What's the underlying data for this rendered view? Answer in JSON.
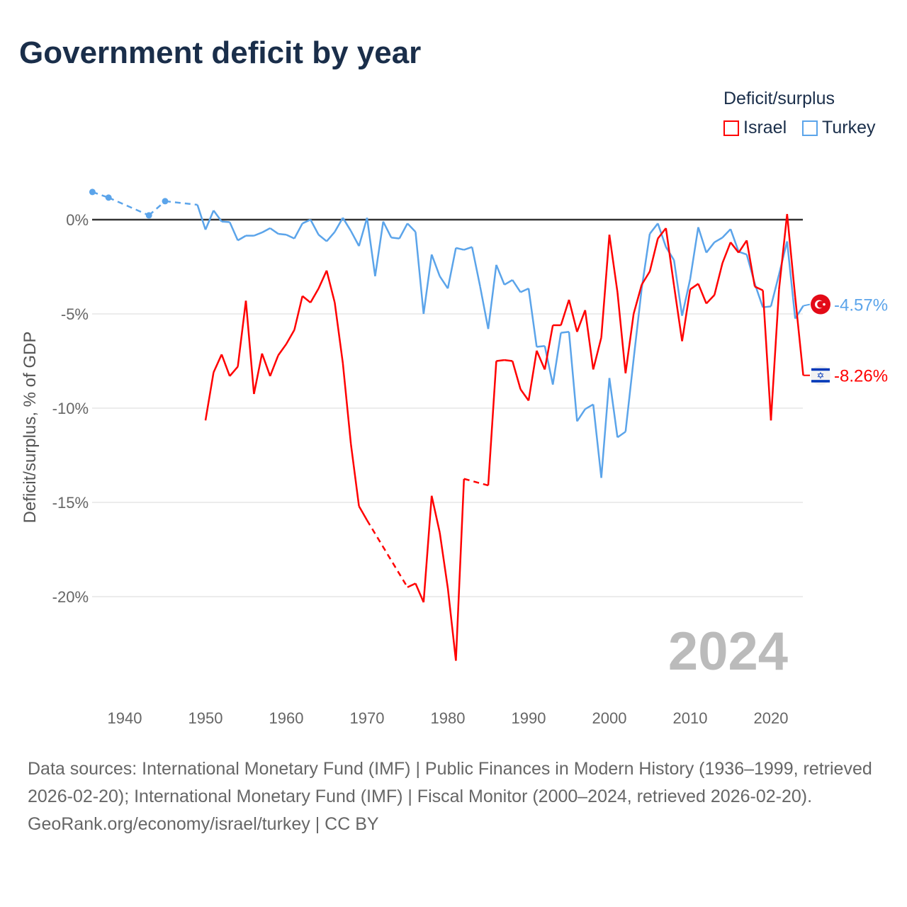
{
  "title": "Government deficit by year",
  "legend": {
    "title": "Deficit/surplus",
    "items": [
      {
        "name": "Israel",
        "color": "#ff0000"
      },
      {
        "name": "Turkey",
        "color": "#5ba4ea"
      }
    ]
  },
  "year_label": "2024",
  "footer": {
    "sources": "Data sources: International Monetary Fund (IMF) | Public Finances in Modern History (1936–1999, retrieved 2026-02-20); International Monetary Fund (IMF) | Fiscal Monitor (2000–2024, retrieved 2026-02-20).",
    "credit": "GeoRank.org/economy/israel/turkey | CC BY"
  },
  "chart_data": {
    "type": "line",
    "title": "Government deficit by year",
    "xlabel": "",
    "ylabel": "Deficit/surplus, % of GDP",
    "xlim": [
      1936,
      2024
    ],
    "ylim": [
      -24,
      2
    ],
    "x_ticks": [
      1940,
      1950,
      1960,
      1970,
      1980,
      1990,
      2000,
      2010,
      2020
    ],
    "y_ticks": [
      {
        "v": 0,
        "label": "0%"
      },
      {
        "v": -5,
        "label": "-5%"
      },
      {
        "v": -10,
        "label": "-10%"
      },
      {
        "v": -15,
        "label": "-15%"
      },
      {
        "v": -20,
        "label": "-20%"
      }
    ],
    "grid": true,
    "legend_position": "top-right",
    "series": [
      {
        "name": "Turkey",
        "color": "#5ba4ea",
        "end_label": "-4.57%",
        "flag": "turkey",
        "points": [
          [
            1936,
            1.47
          ],
          [
            1938,
            1.17
          ],
          [
            1943,
            0.23
          ],
          [
            1945,
            0.98
          ],
          [
            1949,
            0.79
          ],
          [
            1950,
            -0.53
          ],
          [
            1951,
            0.49
          ],
          [
            1952,
            -0.1
          ],
          [
            1953,
            -0.13
          ],
          [
            1954,
            -1.1
          ],
          [
            1955,
            -0.85
          ],
          [
            1956,
            -0.85
          ],
          [
            1957,
            -0.68
          ],
          [
            1958,
            -0.45
          ],
          [
            1959,
            -0.75
          ],
          [
            1960,
            -0.8
          ],
          [
            1961,
            -1.0
          ],
          [
            1962,
            -0.2
          ],
          [
            1963,
            0
          ],
          [
            1964,
            -0.8
          ],
          [
            1965,
            -1.15
          ],
          [
            1966,
            -0.65
          ],
          [
            1967,
            0.1
          ],
          [
            1968,
            -0.6
          ],
          [
            1969,
            -1.4
          ],
          [
            1970,
            0.1
          ],
          [
            1971,
            -3.0
          ],
          [
            1972,
            -0.1
          ],
          [
            1973,
            -0.95
          ],
          [
            1974,
            -1.0
          ],
          [
            1975,
            -0.2
          ],
          [
            1976,
            -0.65
          ],
          [
            1977,
            -5.0
          ],
          [
            1978,
            -1.85
          ],
          [
            1979,
            -3.0
          ],
          [
            1980,
            -3.65
          ],
          [
            1981,
            -1.5
          ],
          [
            1982,
            -1.6
          ],
          [
            1983,
            -1.45
          ],
          [
            1984,
            -3.55
          ],
          [
            1985,
            -5.8
          ],
          [
            1986,
            -2.4
          ],
          [
            1987,
            -3.45
          ],
          [
            1988,
            -3.2
          ],
          [
            1989,
            -3.85
          ],
          [
            1990,
            -3.65
          ],
          [
            1991,
            -6.75
          ],
          [
            1992,
            -6.7
          ],
          [
            1993,
            -8.75
          ],
          [
            1994,
            -6.0
          ],
          [
            1995,
            -5.95
          ],
          [
            1996,
            -10.7
          ],
          [
            1997,
            -10.05
          ],
          [
            1998,
            -9.8
          ],
          [
            1999,
            -13.7
          ],
          [
            2000,
            -8.4
          ],
          [
            2001,
            -11.55
          ],
          [
            2002,
            -11.25
          ],
          [
            2003,
            -7.4
          ],
          [
            2004,
            -3.65
          ],
          [
            2005,
            -0.75
          ],
          [
            2006,
            -0.2
          ],
          [
            2007,
            -1.45
          ],
          [
            2008,
            -2.15
          ],
          [
            2009,
            -5.1
          ],
          [
            2010,
            -3.15
          ],
          [
            2011,
            -0.4
          ],
          [
            2012,
            -1.75
          ],
          [
            2013,
            -1.2
          ],
          [
            2014,
            -0.95
          ],
          [
            2015,
            -0.5
          ],
          [
            2016,
            -1.7
          ],
          [
            2017,
            -1.85
          ],
          [
            2018,
            -3.4
          ],
          [
            2019,
            -4.65
          ],
          [
            2020,
            -4.6
          ],
          [
            2021,
            -2.9
          ],
          [
            2022,
            -1.15
          ],
          [
            2023,
            -5.25
          ],
          [
            2024,
            -4.57
          ]
        ]
      },
      {
        "name": "Israel",
        "color": "#ff0000",
        "end_label": "-8.26%",
        "flag": "israel",
        "points": [
          [
            1950,
            -10.65
          ],
          [
            1951,
            -8.1
          ],
          [
            1952,
            -7.15
          ],
          [
            1953,
            -8.3
          ],
          [
            1954,
            -7.8
          ],
          [
            1955,
            -4.3
          ],
          [
            1956,
            -9.25
          ],
          [
            1957,
            -7.1
          ],
          [
            1958,
            -8.3
          ],
          [
            1959,
            -7.2
          ],
          [
            1960,
            -6.6
          ],
          [
            1961,
            -5.85
          ],
          [
            1962,
            -4.05
          ],
          [
            1963,
            -4.4
          ],
          [
            1964,
            -3.65
          ],
          [
            1965,
            -2.7
          ],
          [
            1966,
            -4.4
          ],
          [
            1967,
            -7.6
          ],
          [
            1968,
            -11.9
          ],
          [
            1969,
            -15.2
          ],
          [
            1970,
            -15.95
          ],
          [
            1975,
            -19.5
          ],
          [
            1976,
            -19.3
          ],
          [
            1977,
            -20.3
          ],
          [
            1978,
            -14.65
          ],
          [
            1979,
            -16.6
          ],
          [
            1980,
            -19.55
          ],
          [
            1981,
            -23.4
          ],
          [
            1982,
            -13.75
          ],
          [
            1985,
            -14.1
          ],
          [
            1986,
            -7.5
          ],
          [
            1987,
            -7.45
          ],
          [
            1988,
            -7.5
          ],
          [
            1989,
            -9.0
          ],
          [
            1990,
            -9.6
          ],
          [
            1991,
            -6.95
          ],
          [
            1992,
            -7.95
          ],
          [
            1993,
            -5.6
          ],
          [
            1994,
            -5.6
          ],
          [
            1995,
            -4.25
          ],
          [
            1996,
            -5.95
          ],
          [
            1997,
            -4.8
          ],
          [
            1998,
            -7.95
          ],
          [
            1999,
            -6.25
          ],
          [
            2000,
            -0.8
          ],
          [
            2001,
            -3.85
          ],
          [
            2002,
            -8.15
          ],
          [
            2003,
            -5.0
          ],
          [
            2004,
            -3.45
          ],
          [
            2005,
            -2.75
          ],
          [
            2006,
            -1.0
          ],
          [
            2007,
            -0.45
          ],
          [
            2008,
            -3.5
          ],
          [
            2009,
            -6.45
          ],
          [
            2010,
            -3.7
          ],
          [
            2011,
            -3.4
          ],
          [
            2012,
            -4.45
          ],
          [
            2013,
            -4.0
          ],
          [
            2014,
            -2.3
          ],
          [
            2015,
            -1.2
          ],
          [
            2016,
            -1.75
          ],
          [
            2017,
            -1.1
          ],
          [
            2018,
            -3.55
          ],
          [
            2019,
            -3.75
          ],
          [
            2020,
            -10.65
          ],
          [
            2021,
            -3.7
          ],
          [
            2022,
            0.3
          ],
          [
            2023,
            -4.1
          ],
          [
            2024,
            -8.26
          ]
        ]
      }
    ]
  }
}
